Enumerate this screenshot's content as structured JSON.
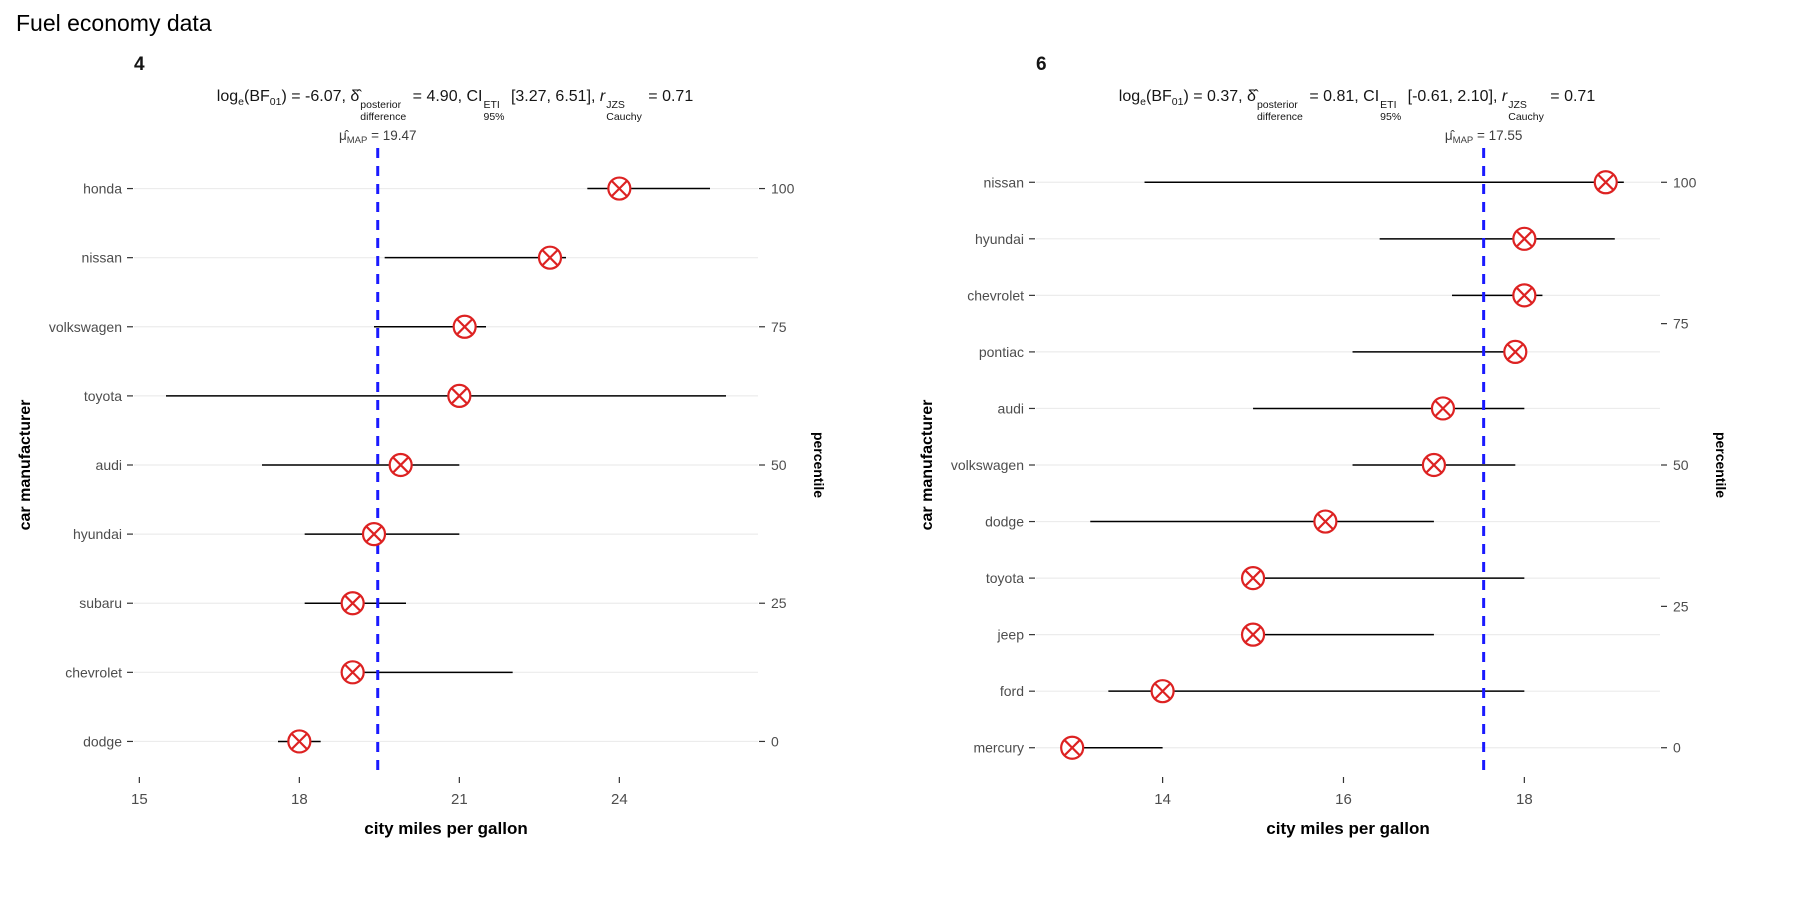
{
  "page": {
    "title": "Fuel economy data"
  },
  "colors": {
    "marker": "#dd2222",
    "map_line": "#1a1aff",
    "grid": "#ececec",
    "axis_text": "#4d4d4d",
    "tick": "#333333",
    "error_bar": "#000000",
    "map_label": "#3d3d3d",
    "title_text": "#000000"
  },
  "chart_data": [
    {
      "type": "scatter",
      "facet_label": "4",
      "stats": {
        "log_e_BF01": -6.07,
        "delta_posterior_difference": 4.9,
        "ci_95_ETI": [
          3.27,
          6.51
        ],
        "r_JZS_Cauchy": 0.71
      },
      "subtitle_tokens": [
        {
          "t": "log"
        },
        {
          "sub": "e"
        },
        {
          "t": "(BF"
        },
        {
          "sub": "01"
        },
        {
          "t": ") = -6.07, "
        },
        {
          "t": "δ̂"
        },
        {
          "st": [
            "posterior",
            "difference"
          ]
        },
        {
          "t": " = 4.90, CI"
        },
        {
          "st": [
            "ETI",
            "95%"
          ]
        },
        {
          "t": " [3.27, 6.51], "
        },
        {
          "i": "r"
        },
        {
          "st": [
            "JZS",
            "Cauchy"
          ]
        },
        {
          "t": " = 0.71"
        }
      ],
      "map": {
        "symbol": "μ̂",
        "sub": "MAP",
        "text": " = 19.47",
        "value": 19.47
      },
      "xlabel": "city miles per gallon",
      "ylabel": "car manufacturer",
      "y2label": "percentile",
      "xlim": [
        14.9,
        26.6
      ],
      "xticks": [
        15,
        18,
        21,
        24
      ],
      "percentile_ticks": [
        100,
        75,
        50,
        25,
        0
      ],
      "grid_on": true,
      "legend": "none",
      "rows": [
        {
          "label": "honda",
          "estimate": 24.0,
          "ci": [
            23.4,
            25.7
          ]
        },
        {
          "label": "nissan",
          "estimate": 22.7,
          "ci": [
            19.6,
            23.0
          ]
        },
        {
          "label": "volkswagen",
          "estimate": 21.1,
          "ci": [
            19.4,
            21.5
          ]
        },
        {
          "label": "toyota",
          "estimate": 21.0,
          "ci": [
            15.5,
            26.0
          ]
        },
        {
          "label": "audi",
          "estimate": 19.9,
          "ci": [
            17.3,
            21.0
          ]
        },
        {
          "label": "hyundai",
          "estimate": 19.4,
          "ci": [
            18.1,
            21.0
          ]
        },
        {
          "label": "subaru",
          "estimate": 19.0,
          "ci": [
            18.1,
            20.0
          ]
        },
        {
          "label": "chevrolet",
          "estimate": 19.0,
          "ci": [
            18.9,
            22.0
          ]
        },
        {
          "label": "dodge",
          "estimate": 18.0,
          "ci": [
            17.6,
            18.4
          ]
        }
      ]
    },
    {
      "type": "scatter",
      "facet_label": "6",
      "stats": {
        "log_e_BF01": 0.37,
        "delta_posterior_difference": 0.81,
        "ci_95_ETI": [
          -0.61,
          2.1
        ],
        "r_JZS_Cauchy": 0.71
      },
      "subtitle_tokens": [
        {
          "t": "log"
        },
        {
          "sub": "e"
        },
        {
          "t": "(BF"
        },
        {
          "sub": "01"
        },
        {
          "t": ") = 0.37, "
        },
        {
          "t": "δ̂"
        },
        {
          "st": [
            "posterior",
            "difference"
          ]
        },
        {
          "t": " = 0.81, CI"
        },
        {
          "st": [
            "ETI",
            "95%"
          ]
        },
        {
          "t": " [-0.61, 2.10], "
        },
        {
          "i": "r"
        },
        {
          "st": [
            "JZS",
            "Cauchy"
          ]
        },
        {
          "t": " = 0.71"
        }
      ],
      "map": {
        "symbol": "μ̂",
        "sub": "MAP",
        "text": " = 17.55",
        "value": 17.55
      },
      "xlabel": "city miles per gallon",
      "ylabel": "car manufacturer",
      "y2label": "percentile",
      "xlim": [
        12.6,
        19.5
      ],
      "xticks": [
        14,
        16,
        18
      ],
      "percentile_ticks": [
        100,
        75,
        50,
        25,
        0
      ],
      "grid_on": true,
      "legend": "none",
      "rows": [
        {
          "label": "nissan",
          "estimate": 18.9,
          "ci": [
            13.8,
            19.1
          ]
        },
        {
          "label": "hyundai",
          "estimate": 18.0,
          "ci": [
            16.4,
            19.0
          ]
        },
        {
          "label": "chevrolet",
          "estimate": 18.0,
          "ci": [
            17.2,
            18.2
          ]
        },
        {
          "label": "pontiac",
          "estimate": 17.9,
          "ci": [
            16.1,
            18.0
          ]
        },
        {
          "label": "audi",
          "estimate": 17.1,
          "ci": [
            15.0,
            18.0
          ]
        },
        {
          "label": "volkswagen",
          "estimate": 17.0,
          "ci": [
            16.1,
            17.9
          ]
        },
        {
          "label": "dodge",
          "estimate": 15.8,
          "ci": [
            13.2,
            17.0
          ]
        },
        {
          "label": "toyota",
          "estimate": 15.0,
          "ci": [
            14.9,
            18.0
          ]
        },
        {
          "label": "jeep",
          "estimate": 15.0,
          "ci": [
            14.9,
            17.0
          ]
        },
        {
          "label": "ford",
          "estimate": 14.0,
          "ci": [
            13.4,
            18.0
          ]
        },
        {
          "label": "mercury",
          "estimate": 13.0,
          "ci": [
            12.9,
            14.0
          ]
        }
      ]
    }
  ]
}
